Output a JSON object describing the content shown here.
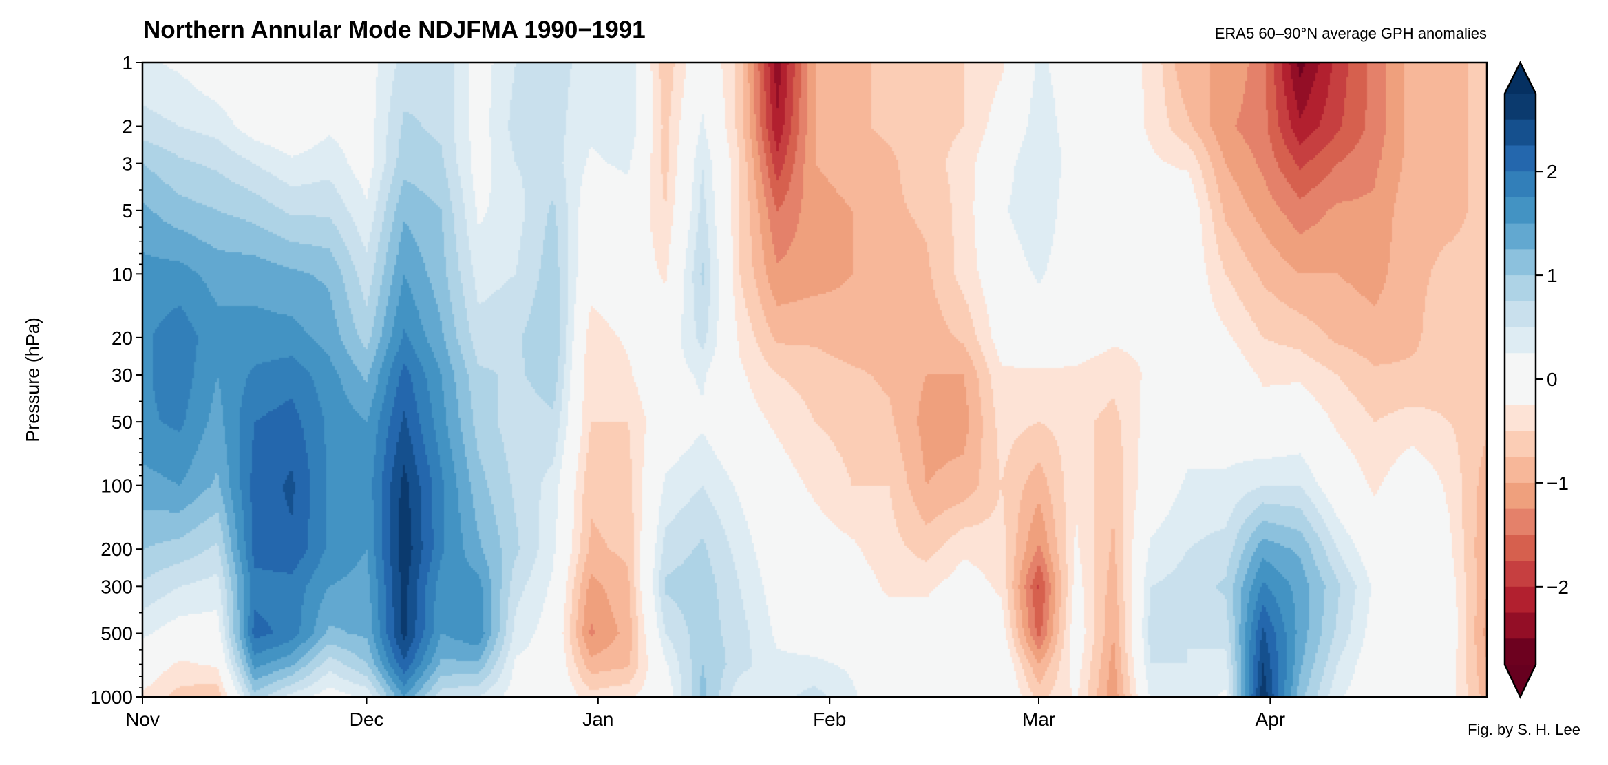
{
  "chart_data": {
    "type": "heatmap",
    "subtype": "filled-contour",
    "title": "Northern Annular Mode NDJFMA 1990−1991",
    "subtitle": "ERA5 60–90°N average GPH anomalies",
    "credit": "Fig. by S. H. Lee",
    "xlabel": "",
    "ylabel": "Pressure (hPa)",
    "xlim": [
      "1990-11-01",
      "1991-04-30"
    ],
    "ylim": [
      1000,
      1
    ],
    "yscale": "log",
    "y_inverted": true,
    "x_ticks": [
      {
        "date": "1990-11-01",
        "label": "Nov"
      },
      {
        "date": "1990-12-01",
        "label": "Dec"
      },
      {
        "date": "1991-01-01",
        "label": "Jan"
      },
      {
        "date": "1991-02-01",
        "label": "Feb"
      },
      {
        "date": "1991-03-01",
        "label": "Mar"
      },
      {
        "date": "1991-04-01",
        "label": "Apr"
      }
    ],
    "y_ticks": [
      1,
      2,
      3,
      5,
      10,
      20,
      30,
      50,
      100,
      200,
      300,
      500,
      1000
    ],
    "colormap": "RdBu_r",
    "levels": {
      "min": -2.75,
      "max": 2.75,
      "step": 0.25,
      "extend": "both"
    },
    "colorbar": {
      "ticks": [
        2,
        1,
        0,
        -1,
        -2
      ],
      "tick_labels": [
        "2",
        "1",
        "0",
        "−1",
        "−2"
      ]
    },
    "colors": {
      "blue": [
        "#0b3a6e",
        "#15508e",
        "#2467ad",
        "#327fb9",
        "#4393c3",
        "#62a8d0",
        "#8cc1dd",
        "#aed3e6",
        "#c9e0ed",
        "#deecf3"
      ],
      "neutral": "#f5f6f6",
      "red": [
        "#fde3d6",
        "#fbcdb5",
        "#f7b799",
        "#efa07d",
        "#e4816a",
        "#d6604e",
        "#c63f40",
        "#b2202f",
        "#930e26",
        "#6d011f"
      ],
      "extend_high": "#053061",
      "extend_low": "#67001f"
    },
    "pressure_levels": [
      1,
      2,
      3,
      5,
      10,
      20,
      30,
      50,
      100,
      200,
      300,
      500,
      700,
      1000
    ],
    "dates": [
      "1990-11-01",
      "1990-11-06",
      "1990-11-11",
      "1990-11-16",
      "1990-11-21",
      "1990-11-26",
      "1990-12-01",
      "1990-12-06",
      "1990-12-11",
      "1990-12-16",
      "1990-12-21",
      "1990-12-26",
      "1990-12-31",
      "1991-01-05",
      "1991-01-10",
      "1991-01-15",
      "1991-01-20",
      "1991-01-25",
      "1991-01-30",
      "1991-02-04",
      "1991-02-09",
      "1991-02-14",
      "1991-02-19",
      "1991-02-24",
      "1991-03-01",
      "1991-03-06",
      "1991-03-11",
      "1991-03-16",
      "1991-03-21",
      "1991-03-26",
      "1991-03-31",
      "1991-04-05",
      "1991-04-10",
      "1991-04-15",
      "1991-04-20",
      "1991-04-25",
      "1991-04-30"
    ],
    "values": [
      [
        0.3,
        0.6,
        1.0,
        1.3,
        1.6,
        1.7,
        1.7,
        1.7,
        1.4,
        1.0,
        0.7,
        0.3,
        0.0,
        -0.3
      ],
      [
        0.2,
        0.5,
        0.8,
        1.1,
        1.6,
        1.9,
        1.9,
        1.8,
        1.5,
        0.9,
        0.5,
        0.1,
        -0.3,
        -0.6
      ],
      [
        0.0,
        0.4,
        0.7,
        1.0,
        1.4,
        1.6,
        1.5,
        1.4,
        1.2,
        0.7,
        0.4,
        0.1,
        -0.2,
        -0.7
      ],
      [
        -0.2,
        0.1,
        0.5,
        0.9,
        1.4,
        1.6,
        1.8,
        2.0,
        2.1,
        2.1,
        1.9,
        2.1,
        1.6,
        0.9
      ],
      [
        -0.1,
        0.0,
        0.3,
        0.7,
        1.3,
        1.6,
        1.9,
        2.1,
        2.3,
        2.2,
        1.9,
        1.9,
        1.3,
        0.4
      ],
      [
        0.0,
        0.2,
        0.4,
        0.7,
        1.2,
        1.4,
        1.6,
        1.7,
        1.7,
        1.7,
        1.5,
        1.2,
        0.6,
        0.1
      ],
      [
        0.1,
        0.1,
        0.1,
        0.3,
        0.6,
        0.9,
        1.2,
        1.5,
        1.6,
        1.5,
        1.4,
        1.3,
        1.0,
        0.3
      ],
      [
        0.6,
        0.8,
        0.9,
        1.2,
        1.5,
        1.8,
        2.1,
        2.3,
        2.6,
        2.7,
        2.6,
        2.6,
        2.2,
        1.5
      ],
      [
        0.7,
        0.7,
        0.8,
        1.0,
        1.1,
        1.3,
        1.5,
        1.6,
        1.8,
        1.8,
        1.6,
        1.5,
        1.2,
        0.6
      ],
      [
        0.1,
        0.1,
        0.1,
        0.2,
        0.4,
        0.6,
        0.8,
        0.9,
        1.1,
        1.3,
        1.6,
        1.7,
        1.2,
        0.5
      ],
      [
        0.5,
        0.6,
        0.5,
        0.4,
        0.5,
        0.7,
        0.7,
        0.6,
        0.7,
        0.8,
        0.6,
        0.4,
        0.2,
        0.1
      ],
      [
        0.6,
        0.6,
        0.6,
        0.8,
        0.9,
        1.0,
        0.9,
        0.7,
        0.4,
        0.3,
        0.2,
        0.1,
        0.1,
        0.1
      ],
      [
        0.4,
        0.3,
        0.2,
        0.0,
        -0.1,
        -0.4,
        -0.5,
        -0.5,
        -0.7,
        -0.8,
        -1.1,
        -1.3,
        -0.9,
        -0.4
      ],
      [
        0.5,
        0.5,
        0.3,
        0.1,
        0.0,
        -0.2,
        -0.3,
        -0.5,
        -0.6,
        -0.7,
        -0.8,
        -0.9,
        -0.8,
        -0.3
      ],
      [
        -0.7,
        -0.6,
        -0.6,
        -0.5,
        -0.3,
        0.0,
        0.1,
        0.0,
        0.3,
        0.6,
        0.8,
        0.5,
        0.2,
        0.0
      ],
      [
        0.1,
        0.3,
        0.5,
        0.6,
        0.8,
        0.6,
        0.3,
        0.2,
        0.5,
        0.8,
        0.9,
        0.9,
        1.0,
        1.1
      ],
      [
        -0.6,
        -0.6,
        -0.5,
        -0.5,
        -0.5,
        -0.3,
        -0.2,
        -0.1,
        0.2,
        0.4,
        0.5,
        0.6,
        0.6,
        0.3
      ],
      [
        -2.4,
        -2.2,
        -1.9,
        -1.5,
        -1.2,
        -0.8,
        -0.5,
        -0.3,
        -0.1,
        0.0,
        0.1,
        0.2,
        0.3,
        0.4
      ],
      [
        -1.0,
        -1.0,
        -1.0,
        -1.1,
        -1.1,
        -0.8,
        -0.6,
        -0.5,
        -0.3,
        -0.1,
        0.0,
        0.1,
        0.3,
        0.6
      ],
      [
        -0.8,
        -0.8,
        -0.9,
        -1.0,
        -1.0,
        -0.9,
        -0.7,
        -0.6,
        -0.5,
        -0.2,
        -0.1,
        0.0,
        0.2,
        0.3
      ],
      [
        -0.7,
        -0.7,
        -0.8,
        -0.8,
        -0.9,
        -0.9,
        -0.8,
        -0.7,
        -0.5,
        -0.4,
        -0.3,
        -0.1,
        0.0,
        0.0
      ],
      [
        -0.6,
        -0.6,
        -0.6,
        -0.7,
        -0.8,
        -0.9,
        -1.0,
        -1.1,
        -1.0,
        -0.6,
        -0.3,
        -0.1,
        0.0,
        0.0
      ],
      [
        -0.5,
        -0.5,
        -0.4,
        -0.4,
        -0.4,
        -0.7,
        -1.0,
        -1.1,
        -0.9,
        -0.3,
        -0.1,
        0.0,
        0.0,
        0.0
      ],
      [
        -0.3,
        -0.1,
        0.1,
        0.2,
        0.0,
        -0.1,
        -0.3,
        -0.4,
        -0.5,
        -0.4,
        -0.3,
        -0.1,
        0.1,
        0.2
      ],
      [
        0.3,
        0.4,
        0.5,
        0.5,
        0.3,
        0.0,
        -0.3,
        -0.5,
        -0.9,
        -1.3,
        -1.8,
        -1.6,
        -1.0,
        -0.6
      ],
      [
        0.1,
        0.1,
        0.1,
        0.0,
        0.0,
        -0.1,
        -0.3,
        -0.4,
        -0.3,
        -0.2,
        -0.1,
        0.0,
        -0.1,
        -0.2
      ],
      [
        -0.1,
        0.0,
        0.0,
        0.0,
        0.0,
        -0.2,
        -0.4,
        -0.6,
        -0.7,
        -0.8,
        -0.9,
        -1.0,
        -1.1,
        -1.2
      ],
      [
        -0.3,
        -0.3,
        -0.2,
        -0.2,
        -0.2,
        -0.2,
        -0.2,
        -0.1,
        0.0,
        0.3,
        0.5,
        0.6,
        0.5,
        0.3
      ],
      [
        -1.0,
        -0.7,
        -0.3,
        0.0,
        0.0,
        0.0,
        0.0,
        0.1,
        0.3,
        0.5,
        0.6,
        0.5,
        0.5,
        0.4
      ],
      [
        -1.0,
        -1.2,
        -1.0,
        -0.8,
        -0.5,
        -0.2,
        0.0,
        0.1,
        0.3,
        0.6,
        0.8,
        0.6,
        0.4,
        0.2
      ],
      [
        -1.4,
        -1.4,
        -1.3,
        -1.1,
        -0.8,
        -0.5,
        -0.3,
        -0.1,
        0.5,
        1.4,
        1.8,
        2.3,
        2.5,
        2.7
      ],
      [
        -2.6,
        -2.2,
        -1.8,
        -1.4,
        -1.0,
        -0.6,
        -0.3,
        0.0,
        0.5,
        1.2,
        1.4,
        1.4,
        1.3,
        1.1
      ],
      [
        -1.9,
        -1.8,
        -1.5,
        -1.2,
        -1.0,
        -0.8,
        -0.5,
        -0.3,
        0.0,
        0.5,
        0.8,
        0.7,
        0.5,
        0.3
      ],
      [
        -1.4,
        -1.4,
        -1.3,
        -1.2,
        -1.1,
        -0.9,
        -0.7,
        -0.5,
        -0.3,
        0.0,
        0.2,
        0.1,
        0.0,
        0.0
      ],
      [
        -0.9,
        -0.9,
        -0.9,
        -0.8,
        -0.8,
        -0.8,
        -0.7,
        -0.4,
        0.0,
        0.0,
        0.0,
        0.0,
        0.0,
        0.0
      ],
      [
        -0.8,
        -0.8,
        -0.8,
        -0.8,
        -0.7,
        -0.6,
        -0.6,
        -0.5,
        -0.3,
        -0.2,
        -0.1,
        0.0,
        -0.1,
        -0.1
      ],
      [
        -0.7,
        -0.7,
        -0.7,
        -0.7,
        -0.7,
        -0.6,
        -0.5,
        -0.7,
        -0.9,
        -1.0,
        -1.0,
        -1.1,
        -1.0,
        -0.9
      ]
    ]
  }
}
